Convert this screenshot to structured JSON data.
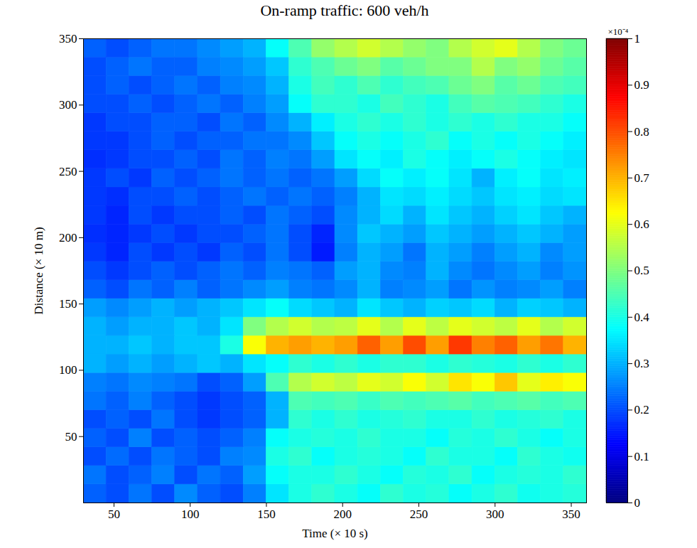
{
  "chart_data": {
    "type": "heatmap",
    "title": "On-ramp traffic: 600 veh/h",
    "x_label": "Time (× 10 s)",
    "y_label": "Distance (× 10 m)",
    "xlim": [
      30,
      360
    ],
    "ylim": [
      0,
      350
    ],
    "xticks": [
      50,
      100,
      150,
      200,
      250,
      300,
      350
    ],
    "yticks": [
      50,
      100,
      150,
      200,
      250,
      300,
      350
    ],
    "x": [
      37.5,
      52.5,
      67.5,
      82.5,
      97.5,
      112.5,
      127.5,
      142.5,
      157.5,
      172.5,
      187.5,
      202.5,
      217.5,
      232.5,
      247.5,
      262.5,
      277.5,
      292.5,
      307.5,
      322.5,
      337.5,
      352.5
    ],
    "y": [
      7,
      21,
      35,
      49,
      63,
      77,
      91,
      105,
      119,
      133,
      147,
      161,
      175,
      189,
      203,
      217,
      231,
      245,
      259,
      273,
      287,
      301,
      315,
      329,
      343
    ],
    "values": [
      [
        0.22,
        0.2,
        0.24,
        0.2,
        0.26,
        0.22,
        0.2,
        0.25,
        0.35,
        0.4,
        0.42,
        0.4,
        0.38,
        0.42,
        0.4,
        0.41,
        0.38,
        0.4,
        0.42,
        0.39,
        0.4,
        0.41
      ],
      [
        0.24,
        0.2,
        0.22,
        0.25,
        0.2,
        0.24,
        0.22,
        0.28,
        0.38,
        0.4,
        0.4,
        0.42,
        0.4,
        0.38,
        0.41,
        0.4,
        0.42,
        0.38,
        0.4,
        0.41,
        0.4,
        0.42
      ],
      [
        0.2,
        0.23,
        0.2,
        0.24,
        0.22,
        0.2,
        0.25,
        0.26,
        0.4,
        0.42,
        0.38,
        0.4,
        0.41,
        0.4,
        0.38,
        0.42,
        0.4,
        0.4,
        0.38,
        0.42,
        0.4,
        0.39
      ],
      [
        0.22,
        0.2,
        0.25,
        0.2,
        0.22,
        0.2,
        0.22,
        0.25,
        0.38,
        0.4,
        0.41,
        0.4,
        0.42,
        0.4,
        0.4,
        0.38,
        0.41,
        0.4,
        0.42,
        0.4,
        0.38,
        0.4
      ],
      [
        0.2,
        0.22,
        0.2,
        0.24,
        0.2,
        0.18,
        0.2,
        0.22,
        0.3,
        0.42,
        0.4,
        0.42,
        0.4,
        0.41,
        0.42,
        0.4,
        0.4,
        0.42,
        0.4,
        0.41,
        0.42,
        0.4
      ],
      [
        0.24,
        0.22,
        0.25,
        0.22,
        0.2,
        0.18,
        0.2,
        0.22,
        0.3,
        0.45,
        0.44,
        0.45,
        0.43,
        0.45,
        0.44,
        0.45,
        0.46,
        0.44,
        0.45,
        0.46,
        0.44,
        0.45
      ],
      [
        0.25,
        0.24,
        0.26,
        0.25,
        0.24,
        0.2,
        0.22,
        0.28,
        0.45,
        0.55,
        0.58,
        0.56,
        0.6,
        0.58,
        0.62,
        0.58,
        0.65,
        0.62,
        0.68,
        0.6,
        0.64,
        0.62
      ],
      [
        0.3,
        0.28,
        0.3,
        0.28,
        0.3,
        0.32,
        0.3,
        0.35,
        0.38,
        0.42,
        0.4,
        0.42,
        0.4,
        0.42,
        0.42,
        0.4,
        0.42,
        0.41,
        0.4,
        0.42,
        0.4,
        0.42
      ],
      [
        0.3,
        0.3,
        0.32,
        0.3,
        0.32,
        0.32,
        0.4,
        0.62,
        0.7,
        0.72,
        0.7,
        0.72,
        0.78,
        0.72,
        0.8,
        0.72,
        0.82,
        0.75,
        0.78,
        0.72,
        0.76,
        0.7
      ],
      [
        0.3,
        0.28,
        0.3,
        0.3,
        0.32,
        0.3,
        0.35,
        0.5,
        0.55,
        0.58,
        0.55,
        0.56,
        0.6,
        0.55,
        0.6,
        0.56,
        0.6,
        0.58,
        0.56,
        0.6,
        0.55,
        0.58
      ],
      [
        0.28,
        0.26,
        0.28,
        0.3,
        0.28,
        0.3,
        0.32,
        0.35,
        0.38,
        0.34,
        0.32,
        0.3,
        0.35,
        0.32,
        0.3,
        0.33,
        0.32,
        0.34,
        0.3,
        0.33,
        0.32,
        0.3
      ],
      [
        0.22,
        0.2,
        0.24,
        0.22,
        0.25,
        0.22,
        0.24,
        0.26,
        0.28,
        0.25,
        0.24,
        0.26,
        0.3,
        0.25,
        0.26,
        0.28,
        0.24,
        0.27,
        0.25,
        0.26,
        0.28,
        0.25
      ],
      [
        0.2,
        0.18,
        0.2,
        0.22,
        0.2,
        0.22,
        0.24,
        0.22,
        0.25,
        0.24,
        0.22,
        0.28,
        0.3,
        0.26,
        0.25,
        0.3,
        0.26,
        0.24,
        0.26,
        0.28,
        0.25,
        0.27
      ],
      [
        0.18,
        0.16,
        0.2,
        0.18,
        0.2,
        0.18,
        0.22,
        0.2,
        0.24,
        0.2,
        0.15,
        0.25,
        0.3,
        0.28,
        0.24,
        0.3,
        0.28,
        0.25,
        0.28,
        0.3,
        0.26,
        0.28
      ],
      [
        0.17,
        0.16,
        0.18,
        0.2,
        0.18,
        0.2,
        0.2,
        0.22,
        0.24,
        0.2,
        0.16,
        0.26,
        0.32,
        0.3,
        0.28,
        0.32,
        0.3,
        0.28,
        0.3,
        0.32,
        0.3,
        0.28
      ],
      [
        0.18,
        0.16,
        0.2,
        0.18,
        0.2,
        0.2,
        0.22,
        0.2,
        0.24,
        0.22,
        0.2,
        0.26,
        0.3,
        0.34,
        0.3,
        0.35,
        0.32,
        0.3,
        0.33,
        0.35,
        0.32,
        0.3
      ],
      [
        0.18,
        0.17,
        0.2,
        0.2,
        0.22,
        0.2,
        0.22,
        0.24,
        0.22,
        0.24,
        0.22,
        0.25,
        0.3,
        0.35,
        0.34,
        0.36,
        0.34,
        0.32,
        0.35,
        0.36,
        0.34,
        0.35
      ],
      [
        0.18,
        0.2,
        0.18,
        0.22,
        0.2,
        0.22,
        0.24,
        0.22,
        0.24,
        0.22,
        0.24,
        0.28,
        0.34,
        0.38,
        0.36,
        0.38,
        0.35,
        0.3,
        0.36,
        0.38,
        0.35,
        0.36
      ],
      [
        0.17,
        0.18,
        0.2,
        0.2,
        0.22,
        0.2,
        0.24,
        0.22,
        0.25,
        0.24,
        0.28,
        0.35,
        0.38,
        0.36,
        0.4,
        0.38,
        0.36,
        0.38,
        0.4,
        0.38,
        0.36,
        0.35
      ],
      [
        0.18,
        0.18,
        0.2,
        0.22,
        0.2,
        0.22,
        0.22,
        0.24,
        0.24,
        0.26,
        0.32,
        0.38,
        0.4,
        0.38,
        0.4,
        0.42,
        0.38,
        0.4,
        0.38,
        0.4,
        0.38,
        0.36
      ],
      [
        0.18,
        0.2,
        0.2,
        0.22,
        0.22,
        0.2,
        0.24,
        0.22,
        0.26,
        0.3,
        0.36,
        0.4,
        0.42,
        0.4,
        0.42,
        0.4,
        0.42,
        0.4,
        0.42,
        0.4,
        0.4,
        0.38
      ],
      [
        0.2,
        0.2,
        0.22,
        0.2,
        0.22,
        0.24,
        0.22,
        0.25,
        0.28,
        0.38,
        0.42,
        0.42,
        0.4,
        0.44,
        0.42,
        0.4,
        0.44,
        0.46,
        0.45,
        0.44,
        0.42,
        0.4
      ],
      [
        0.2,
        0.22,
        0.2,
        0.22,
        0.24,
        0.22,
        0.25,
        0.26,
        0.3,
        0.4,
        0.44,
        0.42,
        0.45,
        0.42,
        0.44,
        0.45,
        0.48,
        0.5,
        0.46,
        0.48,
        0.45,
        0.44
      ],
      [
        0.2,
        0.22,
        0.24,
        0.22,
        0.22,
        0.25,
        0.26,
        0.28,
        0.32,
        0.42,
        0.45,
        0.48,
        0.5,
        0.46,
        0.48,
        0.5,
        0.5,
        0.55,
        0.5,
        0.52,
        0.48,
        0.46
      ],
      [
        0.22,
        0.2,
        0.22,
        0.24,
        0.24,
        0.26,
        0.28,
        0.3,
        0.38,
        0.45,
        0.52,
        0.55,
        0.58,
        0.55,
        0.52,
        0.5,
        0.55,
        0.58,
        0.6,
        0.55,
        0.5,
        0.48
      ]
    ],
    "colorbar": {
      "range": [
        0,
        1
      ],
      "ticks": [
        0,
        0.1,
        0.2,
        0.3,
        0.4,
        0.5,
        0.6,
        0.7,
        0.8,
        0.9,
        1
      ],
      "label": "×10⁻⁴"
    }
  }
}
